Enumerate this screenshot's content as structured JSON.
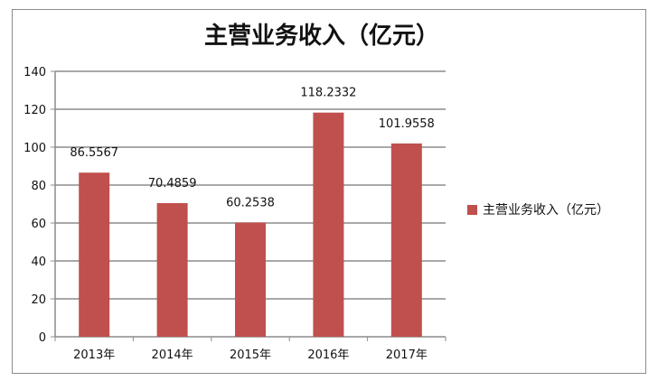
{
  "chart_data": {
    "type": "bar",
    "title": "主营业务收入（亿元）",
    "categories": [
      "2013年",
      "2014年",
      "2015年",
      "2016年",
      "2017年"
    ],
    "series": [
      {
        "name": "主营业务收入（亿元）",
        "values": [
          86.5567,
          70.4859,
          60.2538,
          118.2332,
          101.9558
        ],
        "value_labels": [
          "86.5567",
          "70.4859",
          "60.2538",
          "118.2332",
          "101.9558"
        ],
        "color": "#c0504d"
      }
    ],
    "ylim": [
      0,
      140
    ],
    "yticks": [
      "0",
      "20",
      "40",
      "60",
      "80",
      "100",
      "120",
      "140"
    ],
    "ytick_values": [
      0,
      20,
      40,
      60,
      80,
      100,
      120,
      140
    ],
    "grid": true,
    "legend_position": "right"
  }
}
